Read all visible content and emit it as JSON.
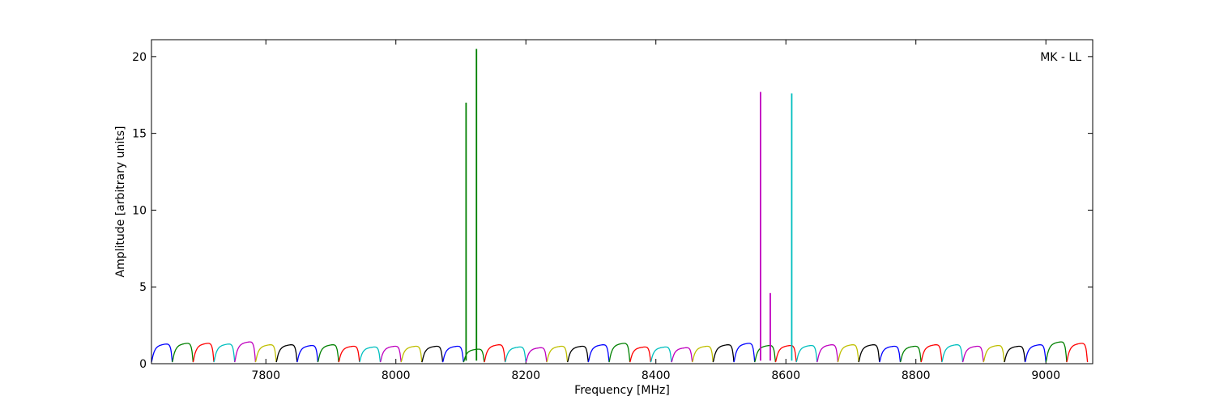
{
  "chart_data": {
    "type": "line",
    "annotation": "MK - LL",
    "xlabel": "Frequency [MHz]",
    "ylabel": "Amplitude [arbitrary units]",
    "xlim": [
      7624,
      9072
    ],
    "ylim": [
      0,
      21.1
    ],
    "x_ticks": [
      7800,
      8000,
      8200,
      8400,
      8600,
      8800,
      9000
    ],
    "y_ticks": [
      0,
      5,
      10,
      15,
      20
    ],
    "grid": false,
    "colors": [
      "#0000ff",
      "#008000",
      "#ff0000",
      "#00bfbf",
      "#bf00bf",
      "#bfbf00",
      "#000000"
    ],
    "channel_width_mhz": 32,
    "first_channel_start_mhz": 7624,
    "channel_count": 45,
    "channel_peak_amplitudes": [
      1.35,
      1.4,
      1.4,
      1.35,
      1.5,
      1.3,
      1.3,
      1.25,
      1.3,
      1.2,
      1.15,
      1.2,
      1.2,
      1.2,
      1.2,
      1.0,
      1.3,
      1.15,
      1.1,
      1.2,
      1.2,
      1.3,
      1.4,
      1.15,
      1.15,
      1.1,
      1.2,
      1.3,
      1.4,
      1.25,
      1.25,
      1.25,
      1.3,
      1.3,
      1.3,
      1.2,
      1.2,
      1.3,
      1.3,
      1.2,
      1.25,
      1.2,
      1.3,
      1.5,
      1.4
    ],
    "spikes": [
      {
        "x": 8108,
        "y": 17.0,
        "color": "#008000"
      },
      {
        "x": 8124,
        "y": 20.5,
        "color": "#008000"
      },
      {
        "x": 8561,
        "y": 17.7,
        "color": "#bf00bf"
      },
      {
        "x": 8576,
        "y": 4.6,
        "color": "#bf00bf"
      },
      {
        "x": 8609,
        "y": 17.6,
        "color": "#00bfbf"
      }
    ]
  }
}
